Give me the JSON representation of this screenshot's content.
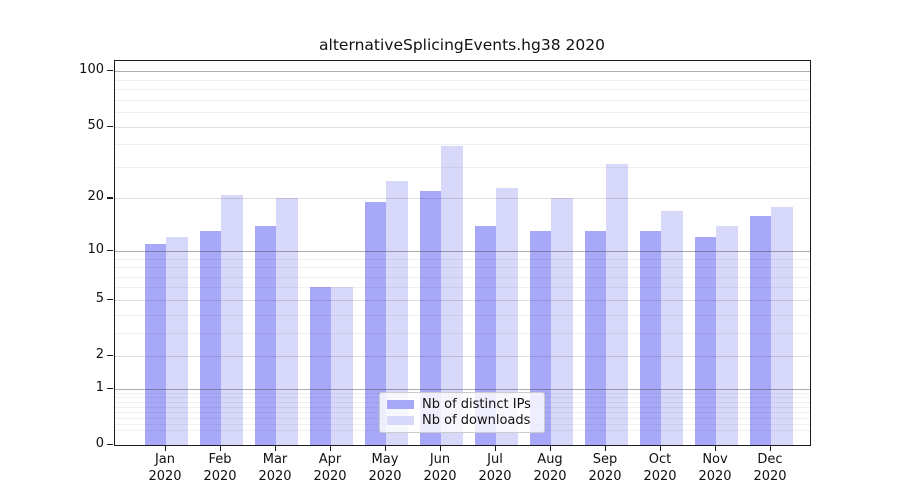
{
  "title": "alternativeSplicingEvents.hg38 2020",
  "chart_data": {
    "type": "bar",
    "title": "alternativeSplicingEvents.hg38 2020",
    "y_scale": "log1p (0,1,2,5,10,20,50,100 ticks)",
    "categories": [
      "Jan",
      "Feb",
      "Mar",
      "Apr",
      "May",
      "Jun",
      "Jul",
      "Aug",
      "Sep",
      "Oct",
      "Nov",
      "Dec"
    ],
    "x_tick_year": "2020",
    "series": [
      {
        "name": "Nb of distinct IPs",
        "color": "#a8a8f8",
        "values": [
          11,
          13,
          14,
          6,
          19,
          22,
          14,
          13,
          13,
          13,
          12,
          16
        ]
      },
      {
        "name": "Nb of downloads",
        "color": "#d8d8fa",
        "values": [
          12,
          21,
          20,
          6,
          25,
          39,
          23,
          20,
          31,
          17,
          14,
          18
        ]
      }
    ],
    "y_ticks": [
      "0",
      "1",
      "2",
      "5",
      "10",
      "20",
      "50",
      "100"
    ],
    "ylim": [
      0,
      113
    ],
    "xlabel": "",
    "ylabel": "",
    "grid": "horizontal major + log minor gridlines, drawn over bars",
    "legend_position": "lower center inside plot"
  }
}
